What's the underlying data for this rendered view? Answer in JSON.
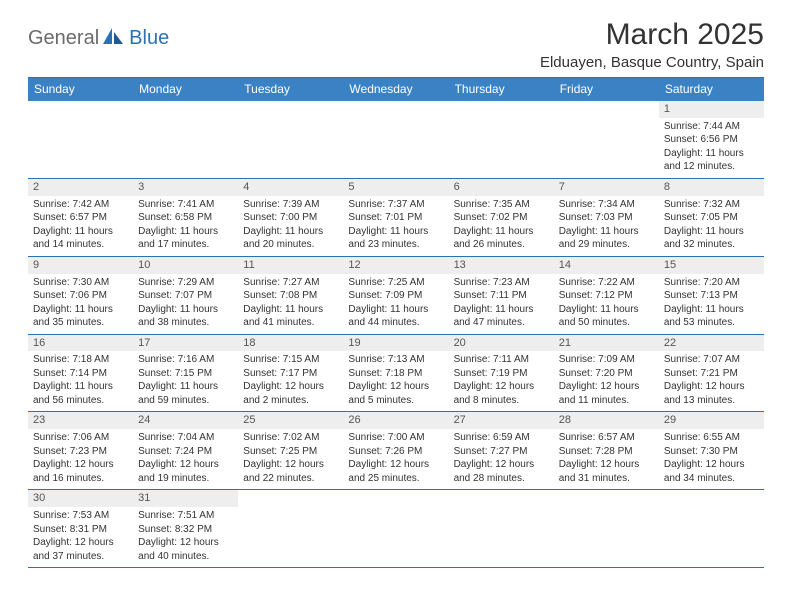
{
  "brand": {
    "part1": "General",
    "part2": "Blue"
  },
  "title": "March 2025",
  "location": "Elduayen, Basque Country, Spain",
  "colors": {
    "header_bg": "#3b82c4",
    "border": "#2a72b5",
    "daynum_bg": "#eeeeee",
    "text": "#333333",
    "logo_gray": "#6b6b6b",
    "logo_blue": "#2a72b5"
  },
  "weekdays": [
    "Sunday",
    "Monday",
    "Tuesday",
    "Wednesday",
    "Thursday",
    "Friday",
    "Saturday"
  ],
  "weeks": [
    [
      {
        "empty": true
      },
      {
        "empty": true
      },
      {
        "empty": true
      },
      {
        "empty": true
      },
      {
        "empty": true
      },
      {
        "empty": true
      },
      {
        "day": "1",
        "sunrise": "Sunrise: 7:44 AM",
        "sunset": "Sunset: 6:56 PM",
        "daylight": "Daylight: 11 hours and 12 minutes."
      }
    ],
    [
      {
        "day": "2",
        "sunrise": "Sunrise: 7:42 AM",
        "sunset": "Sunset: 6:57 PM",
        "daylight": "Daylight: 11 hours and 14 minutes."
      },
      {
        "day": "3",
        "sunrise": "Sunrise: 7:41 AM",
        "sunset": "Sunset: 6:58 PM",
        "daylight": "Daylight: 11 hours and 17 minutes."
      },
      {
        "day": "4",
        "sunrise": "Sunrise: 7:39 AM",
        "sunset": "Sunset: 7:00 PM",
        "daylight": "Daylight: 11 hours and 20 minutes."
      },
      {
        "day": "5",
        "sunrise": "Sunrise: 7:37 AM",
        "sunset": "Sunset: 7:01 PM",
        "daylight": "Daylight: 11 hours and 23 minutes."
      },
      {
        "day": "6",
        "sunrise": "Sunrise: 7:35 AM",
        "sunset": "Sunset: 7:02 PM",
        "daylight": "Daylight: 11 hours and 26 minutes."
      },
      {
        "day": "7",
        "sunrise": "Sunrise: 7:34 AM",
        "sunset": "Sunset: 7:03 PM",
        "daylight": "Daylight: 11 hours and 29 minutes."
      },
      {
        "day": "8",
        "sunrise": "Sunrise: 7:32 AM",
        "sunset": "Sunset: 7:05 PM",
        "daylight": "Daylight: 11 hours and 32 minutes."
      }
    ],
    [
      {
        "day": "9",
        "sunrise": "Sunrise: 7:30 AM",
        "sunset": "Sunset: 7:06 PM",
        "daylight": "Daylight: 11 hours and 35 minutes."
      },
      {
        "day": "10",
        "sunrise": "Sunrise: 7:29 AM",
        "sunset": "Sunset: 7:07 PM",
        "daylight": "Daylight: 11 hours and 38 minutes."
      },
      {
        "day": "11",
        "sunrise": "Sunrise: 7:27 AM",
        "sunset": "Sunset: 7:08 PM",
        "daylight": "Daylight: 11 hours and 41 minutes."
      },
      {
        "day": "12",
        "sunrise": "Sunrise: 7:25 AM",
        "sunset": "Sunset: 7:09 PM",
        "daylight": "Daylight: 11 hours and 44 minutes."
      },
      {
        "day": "13",
        "sunrise": "Sunrise: 7:23 AM",
        "sunset": "Sunset: 7:11 PM",
        "daylight": "Daylight: 11 hours and 47 minutes."
      },
      {
        "day": "14",
        "sunrise": "Sunrise: 7:22 AM",
        "sunset": "Sunset: 7:12 PM",
        "daylight": "Daylight: 11 hours and 50 minutes."
      },
      {
        "day": "15",
        "sunrise": "Sunrise: 7:20 AM",
        "sunset": "Sunset: 7:13 PM",
        "daylight": "Daylight: 11 hours and 53 minutes."
      }
    ],
    [
      {
        "day": "16",
        "sunrise": "Sunrise: 7:18 AM",
        "sunset": "Sunset: 7:14 PM",
        "daylight": "Daylight: 11 hours and 56 minutes."
      },
      {
        "day": "17",
        "sunrise": "Sunrise: 7:16 AM",
        "sunset": "Sunset: 7:15 PM",
        "daylight": "Daylight: 11 hours and 59 minutes."
      },
      {
        "day": "18",
        "sunrise": "Sunrise: 7:15 AM",
        "sunset": "Sunset: 7:17 PM",
        "daylight": "Daylight: 12 hours and 2 minutes."
      },
      {
        "day": "19",
        "sunrise": "Sunrise: 7:13 AM",
        "sunset": "Sunset: 7:18 PM",
        "daylight": "Daylight: 12 hours and 5 minutes."
      },
      {
        "day": "20",
        "sunrise": "Sunrise: 7:11 AM",
        "sunset": "Sunset: 7:19 PM",
        "daylight": "Daylight: 12 hours and 8 minutes."
      },
      {
        "day": "21",
        "sunrise": "Sunrise: 7:09 AM",
        "sunset": "Sunset: 7:20 PM",
        "daylight": "Daylight: 12 hours and 11 minutes."
      },
      {
        "day": "22",
        "sunrise": "Sunrise: 7:07 AM",
        "sunset": "Sunset: 7:21 PM",
        "daylight": "Daylight: 12 hours and 13 minutes."
      }
    ],
    [
      {
        "day": "23",
        "sunrise": "Sunrise: 7:06 AM",
        "sunset": "Sunset: 7:23 PM",
        "daylight": "Daylight: 12 hours and 16 minutes."
      },
      {
        "day": "24",
        "sunrise": "Sunrise: 7:04 AM",
        "sunset": "Sunset: 7:24 PM",
        "daylight": "Daylight: 12 hours and 19 minutes."
      },
      {
        "day": "25",
        "sunrise": "Sunrise: 7:02 AM",
        "sunset": "Sunset: 7:25 PM",
        "daylight": "Daylight: 12 hours and 22 minutes."
      },
      {
        "day": "26",
        "sunrise": "Sunrise: 7:00 AM",
        "sunset": "Sunset: 7:26 PM",
        "daylight": "Daylight: 12 hours and 25 minutes."
      },
      {
        "day": "27",
        "sunrise": "Sunrise: 6:59 AM",
        "sunset": "Sunset: 7:27 PM",
        "daylight": "Daylight: 12 hours and 28 minutes."
      },
      {
        "day": "28",
        "sunrise": "Sunrise: 6:57 AM",
        "sunset": "Sunset: 7:28 PM",
        "daylight": "Daylight: 12 hours and 31 minutes."
      },
      {
        "day": "29",
        "sunrise": "Sunrise: 6:55 AM",
        "sunset": "Sunset: 7:30 PM",
        "daylight": "Daylight: 12 hours and 34 minutes."
      }
    ],
    [
      {
        "day": "30",
        "sunrise": "Sunrise: 7:53 AM",
        "sunset": "Sunset: 8:31 PM",
        "daylight": "Daylight: 12 hours and 37 minutes."
      },
      {
        "day": "31",
        "sunrise": "Sunrise: 7:51 AM",
        "sunset": "Sunset: 8:32 PM",
        "daylight": "Daylight: 12 hours and 40 minutes."
      },
      {
        "empty": true
      },
      {
        "empty": true
      },
      {
        "empty": true
      },
      {
        "empty": true
      },
      {
        "empty": true
      }
    ]
  ]
}
